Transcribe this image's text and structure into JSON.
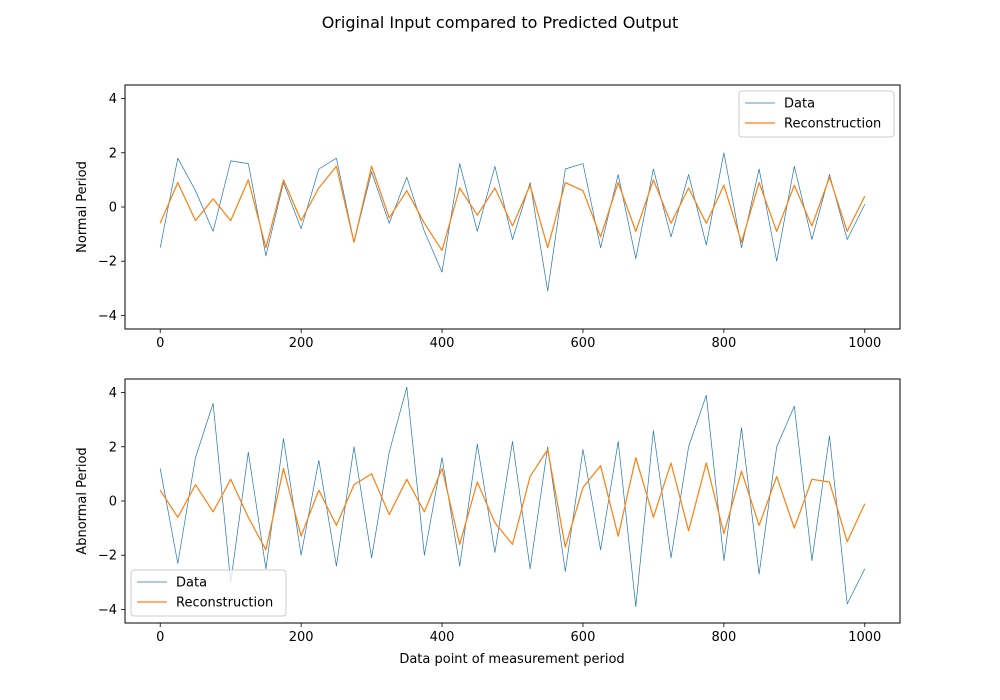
{
  "figure_title": "Original Input compared to Predicted Output",
  "colors": {
    "data": "#1f77b4",
    "reconstruction": "#ff7f0e"
  },
  "chart_data": [
    {
      "type": "line",
      "ylabel": "Normal Period",
      "xlabel": "",
      "xlim": [
        -50,
        1050
      ],
      "ylim": [
        -4.5,
        4.5
      ],
      "xticks": [
        0,
        200,
        400,
        600,
        800,
        1000
      ],
      "yticks": [
        -4,
        -2,
        0,
        2,
        4
      ],
      "legend_position": "top-right",
      "grid": false,
      "series": [
        {
          "name": "Data",
          "x": [
            0,
            25,
            50,
            75,
            100,
            125,
            150,
            175,
            200,
            225,
            250,
            275,
            300,
            325,
            350,
            375,
            400,
            425,
            450,
            475,
            500,
            525,
            550,
            575,
            600,
            625,
            650,
            675,
            700,
            725,
            750,
            775,
            800,
            825,
            850,
            875,
            900,
            925,
            950,
            975,
            1000
          ],
          "y": [
            -1.5,
            1.8,
            0.6,
            -0.9,
            1.7,
            1.6,
            -1.8,
            0.9,
            -0.8,
            1.4,
            1.8,
            -1.3,
            1.3,
            -0.6,
            1.1,
            -0.9,
            -2.4,
            1.6,
            -0.9,
            1.5,
            -1.2,
            0.9,
            -3.1,
            1.4,
            1.6,
            -1.5,
            1.2,
            -1.9,
            1.4,
            -1.1,
            1.2,
            -1.4,
            2.0,
            -1.5,
            1.4,
            -2.0,
            1.5,
            -1.2,
            1.2,
            -1.2,
            0.1
          ],
          "linewidth": 0.7
        },
        {
          "name": "Reconstruction",
          "x": [
            0,
            25,
            50,
            75,
            100,
            125,
            150,
            175,
            200,
            225,
            250,
            275,
            300,
            325,
            350,
            375,
            400,
            425,
            450,
            475,
            500,
            525,
            550,
            575,
            600,
            625,
            650,
            675,
            700,
            725,
            750,
            775,
            800,
            825,
            850,
            875,
            900,
            925,
            950,
            975,
            1000
          ],
          "y": [
            -0.6,
            0.9,
            -0.5,
            0.3,
            -0.5,
            1.0,
            -1.5,
            1.0,
            -0.5,
            0.7,
            1.5,
            -1.3,
            1.5,
            -0.4,
            0.6,
            -0.6,
            -1.6,
            0.7,
            -0.3,
            0.7,
            -0.7,
            0.8,
            -1.5,
            0.9,
            0.6,
            -1.1,
            0.9,
            -0.9,
            1.0,
            -0.6,
            0.7,
            -0.6,
            0.8,
            -1.3,
            0.9,
            -0.9,
            0.8,
            -0.7,
            1.1,
            -0.9,
            0.4
          ],
          "linewidth": 1.2
        }
      ]
    },
    {
      "type": "line",
      "ylabel": "Abnormal Period",
      "xlabel": "Data point of measurement period",
      "xlim": [
        -50,
        1050
      ],
      "ylim": [
        -4.5,
        4.5
      ],
      "xticks": [
        0,
        200,
        400,
        600,
        800,
        1000
      ],
      "yticks": [
        -4,
        -2,
        0,
        2,
        4
      ],
      "legend_position": "bottom-left",
      "grid": false,
      "series": [
        {
          "name": "Data",
          "x": [
            0,
            25,
            50,
            75,
            100,
            125,
            150,
            175,
            200,
            225,
            250,
            275,
            300,
            325,
            350,
            375,
            400,
            425,
            450,
            475,
            500,
            525,
            550,
            575,
            600,
            625,
            650,
            675,
            700,
            725,
            750,
            775,
            800,
            825,
            850,
            875,
            900,
            925,
            950,
            975,
            1000
          ],
          "y": [
            1.2,
            -2.3,
            1.6,
            3.6,
            -3.0,
            1.8,
            -2.5,
            2.3,
            -2.0,
            1.5,
            -2.4,
            2.0,
            -2.1,
            1.8,
            4.2,
            -2.0,
            1.6,
            -2.4,
            2.1,
            -1.9,
            2.2,
            -2.5,
            2.0,
            -2.6,
            1.9,
            -1.8,
            2.2,
            -3.9,
            2.6,
            -2.1,
            2.0,
            3.9,
            -2.2,
            2.7,
            -2.7,
            2.0,
            3.5,
            -2.2,
            2.4,
            -3.8,
            -2.5
          ],
          "linewidth": 0.7
        },
        {
          "name": "Reconstruction",
          "x": [
            0,
            25,
            50,
            75,
            100,
            125,
            150,
            175,
            200,
            225,
            250,
            275,
            300,
            325,
            350,
            375,
            400,
            425,
            450,
            475,
            500,
            525,
            550,
            575,
            600,
            625,
            650,
            675,
            700,
            725,
            750,
            775,
            800,
            825,
            850,
            875,
            900,
            925,
            950,
            975,
            1000
          ],
          "y": [
            0.4,
            -0.6,
            0.6,
            -0.4,
            0.8,
            -0.6,
            -1.8,
            1.2,
            -1.3,
            0.4,
            -0.9,
            0.6,
            1.0,
            -0.5,
            0.8,
            -0.4,
            1.2,
            -1.6,
            0.7,
            -0.8,
            -1.6,
            0.9,
            1.9,
            -1.7,
            0.5,
            1.3,
            -1.3,
            1.6,
            -0.6,
            1.4,
            -1.1,
            1.4,
            -1.2,
            1.1,
            -0.9,
            0.9,
            -1.0,
            0.8,
            0.7,
            -1.5,
            -0.1
          ],
          "linewidth": 1.2
        }
      ]
    }
  ]
}
